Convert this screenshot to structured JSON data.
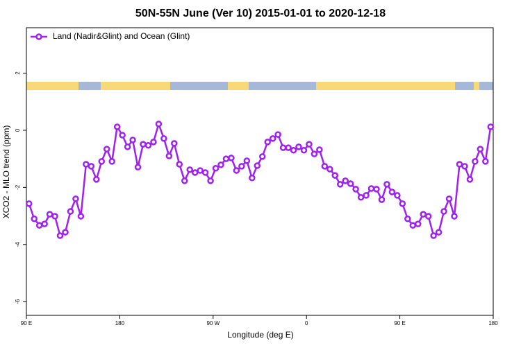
{
  "chart_data": {
    "type": "line",
    "title": "50N-55N June (Ver 10)   2015-01-01 to 2020-12-18",
    "xlabel": "Longitude (deg E)",
    "ylabel": "XCO2 - MLO trend (ppm)",
    "x": [
      92.5,
      97.5,
      102.5,
      107.5,
      112.5,
      117.5,
      122.5,
      127.5,
      132.5,
      137.5,
      142.5,
      147.5,
      152.5,
      157.5,
      162.5,
      167.5,
      172.5,
      177.5,
      182.5,
      187.5,
      192.5,
      197.5,
      202.5,
      207.5,
      212.5,
      217.5,
      222.5,
      227.5,
      232.5,
      237.5,
      242.5,
      247.5,
      252.5,
      257.5,
      262.5,
      267.5,
      272.5,
      277.5,
      282.5,
      287.5,
      292.5,
      297.5,
      302.5,
      307.5,
      312.5,
      317.5,
      322.5,
      327.5,
      332.5,
      337.5,
      342.5,
      347.5,
      352.5,
      357.5,
      362.5,
      367.5,
      372.5,
      377.5,
      382.5,
      387.5,
      392.5,
      397.5,
      402.5,
      407.5,
      412.5,
      417.5,
      422.5,
      427.5,
      432.5,
      437.5,
      442.5,
      447.5,
      452.5,
      457.5,
      462.5,
      467.5,
      472.5,
      477.5,
      482.5,
      487.5,
      492.5,
      497.5,
      502.5,
      507.5,
      512.5,
      517.5,
      522.5,
      527.5,
      532.5,
      537.5
    ],
    "series": [
      {
        "name": "Land (Nadir&Glint) and Ocean (Glint)",
        "color": "#a020f0",
        "values": [
          -2.57,
          -3.1,
          -3.33,
          -3.28,
          -2.94,
          -3.01,
          -3.69,
          -3.57,
          -2.84,
          -2.4,
          -3.01,
          -1.19,
          -1.26,
          -1.72,
          -1.09,
          -0.66,
          -1.09,
          0.12,
          -0.17,
          -0.58,
          -0.34,
          -1.29,
          -0.49,
          -0.53,
          -0.41,
          0.22,
          -0.29,
          -0.9,
          -0.46,
          -1.19,
          -1.77,
          -1.38,
          -1.48,
          -1.41,
          -1.48,
          -1.77,
          -1.33,
          -1.21,
          -1.0,
          -0.97,
          -1.41,
          -1.26,
          -1.07,
          -1.67,
          -1.24,
          -0.92,
          -0.41,
          -0.29,
          -0.15,
          -0.61,
          -0.61,
          -0.7,
          -0.58,
          -0.7,
          -0.49,
          -0.83,
          -0.68,
          -1.26,
          -1.36,
          -1.58,
          -1.89,
          -1.77,
          -1.87,
          -2.06,
          -2.35,
          -2.28,
          -2.04,
          -2.06,
          -2.43,
          -1.89,
          -2.16,
          -2.28,
          -2.57,
          -3.1,
          -3.33,
          -3.28,
          -2.94,
          -3.01,
          -3.69,
          -3.57,
          -2.84,
          -2.4,
          -3.01,
          -1.19,
          -1.26,
          -1.72,
          -1.09,
          -0.66,
          -1.09,
          0.12
        ]
      }
    ],
    "xlim": [
      90,
      540
    ],
    "xticks": [
      {
        "value": 90,
        "label": "90 E"
      },
      180,
      {
        "value": 270,
        "label": "90 W"
      },
      {
        "value": 360,
        "label": "0"
      },
      {
        "value": 450,
        "label": "90 E"
      },
      {
        "value": 540,
        "label": "180"
      }
    ],
    "ylim": [
      -6.48,
      3.59
    ],
    "yticks": [
      2,
      0,
      -2,
      -4,
      -6
    ],
    "legend": "top-left"
  }
}
